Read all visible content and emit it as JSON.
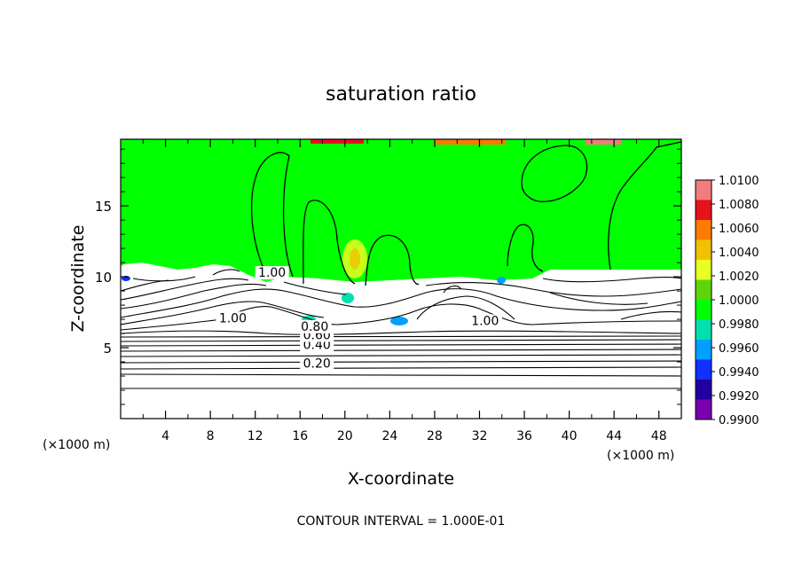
{
  "chart_data": {
    "type": "contour",
    "title": "saturation ratio",
    "xlabel": "X-coordinate",
    "ylabel": "Z-coordinate",
    "x_unit": "(×1000 m)",
    "z_unit": "(×1000 m)",
    "xlim": [
      0,
      50
    ],
    "ylim": [
      0,
      19.7
    ],
    "x_ticks": [
      4,
      8,
      12,
      16,
      20,
      24,
      28,
      32,
      36,
      40,
      44,
      48
    ],
    "x_tick_labels": [
      "4",
      "8",
      "12",
      "16",
      "20",
      "24",
      "28",
      "32",
      "36",
      "40",
      "44",
      "48"
    ],
    "y_ticks": [
      5,
      10,
      15
    ],
    "y_tick_labels": [
      "5",
      "10",
      "15"
    ],
    "contour_interval_label": "CONTOUR INTERVAL = 1.000E-01",
    "contour_labels": [
      {
        "text": "0.20",
        "x": 17.5,
        "z": 3.6
      },
      {
        "text": "0.40",
        "x": 17.5,
        "z": 4.9
      },
      {
        "text": "0.60",
        "x": 17.5,
        "z": 5.6
      },
      {
        "text": "0.80",
        "x": 17.3,
        "z": 6.2
      },
      {
        "text": "1.00",
        "x": 10.0,
        "z": 6.8
      },
      {
        "text": "1.00",
        "x": 32.5,
        "z": 6.6
      },
      {
        "text": "1.00",
        "x": 13.5,
        "z": 10.0
      }
    ],
    "colorbar": {
      "levels": [
        "1.0100",
        "1.0080",
        "1.0060",
        "1.0040",
        "1.0020",
        "1.0000",
        "0.9980",
        "0.9960",
        "0.9940",
        "0.9920",
        "0.9900"
      ],
      "colors": [
        "#f47c7c",
        "#e8101a",
        "#ff7a00",
        "#f2c200",
        "#e8ff20",
        "#5cd60a",
        "#00ff00",
        "#00e0b0",
        "#00a0ff",
        "#1030ff",
        "#2000a0",
        "#7a00b0"
      ]
    },
    "colors": {
      "saturated_region": "#00ff00",
      "unsaturated_region": "#ffffff",
      "contour_line": "#000000"
    }
  }
}
